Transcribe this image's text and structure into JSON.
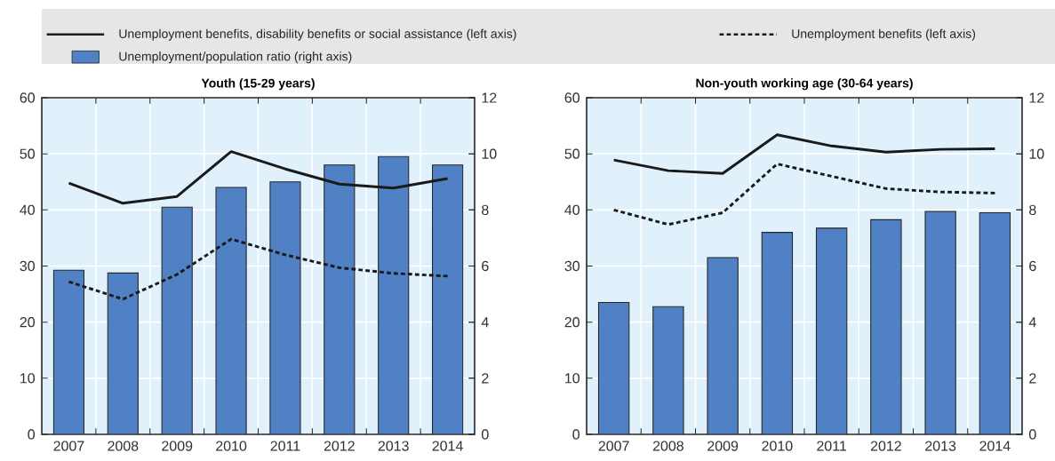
{
  "chart_data": [
    {
      "type": "bar",
      "title": "**Youth (15-29 years)**",
      "categories": [
        "2007",
        "2008",
        "2009",
        "2010",
        "2011",
        "2012",
        "2013",
        "2014"
      ],
      "series": [
        {
          "name": "Unemployment benefits, disability benefits or social assistance (left axis)",
          "type": "line",
          "line_style": "solid",
          "color": "#1a1a1a",
          "values": [
            44.8,
            41.2,
            42.4,
            50.4,
            47.3,
            44.6,
            43.9,
            45.6
          ]
        },
        {
          "name": "Unemployment benefits (left axis)",
          "type": "line",
          "line_style": "dashed",
          "color": "#1a1a1a",
          "values": [
            27.2,
            24.1,
            28.5,
            34.8,
            32.0,
            29.7,
            28.7,
            28.2
          ]
        },
        {
          "name": "Unemployment/population ratio (right axis)",
          "axis": "y2",
          "color": "#4f81c4",
          "values": [
            5.85,
            5.75,
            8.1,
            8.8,
            9.0,
            9.6,
            9.9,
            9.6
          ]
        }
      ],
      "ylim": [
        0,
        60
      ],
      "yticks": [
        0,
        10,
        20,
        30,
        40,
        50,
        60
      ],
      "y2lim": [
        0,
        12
      ],
      "y2ticks": [
        0,
        2,
        4,
        6,
        8,
        10,
        12
      ],
      "grid": true,
      "legend": "top"
    },
    {
      "type": "bar",
      "title": "**Non-youth working age (30-64 years)**",
      "categories": [
        "2007",
        "2008",
        "2009",
        "2010",
        "2011",
        "2012",
        "2013",
        "2014"
      ],
      "series": [
        {
          "type": "line",
          "line_style": "solid",
          "color": "#1a1a1a",
          "values": [
            48.9,
            47.0,
            46.5,
            53.4,
            51.4,
            50.3,
            50.8,
            50.9
          ]
        },
        {
          "type": "line",
          "line_style": "dashed",
          "color": "#1a1a1a",
          "values": [
            40.0,
            37.4,
            39.5,
            48.2,
            46.0,
            43.8,
            43.2,
            43.0
          ]
        },
        {
          "axis": "y2",
          "color": "#4f81c4",
          "values": [
            4.7,
            4.55,
            6.3,
            7.2,
            7.35,
            7.65,
            7.95,
            7.9
          ]
        }
      ],
      "ylim": [
        0,
        60
      ],
      "yticks": [
        0,
        10,
        20,
        30,
        40,
        50,
        60
      ],
      "y2lim": [
        0,
        12
      ],
      "y2ticks": [
        0,
        2,
        4,
        6,
        8,
        10,
        12
      ],
      "grid": true
    }
  ]
}
